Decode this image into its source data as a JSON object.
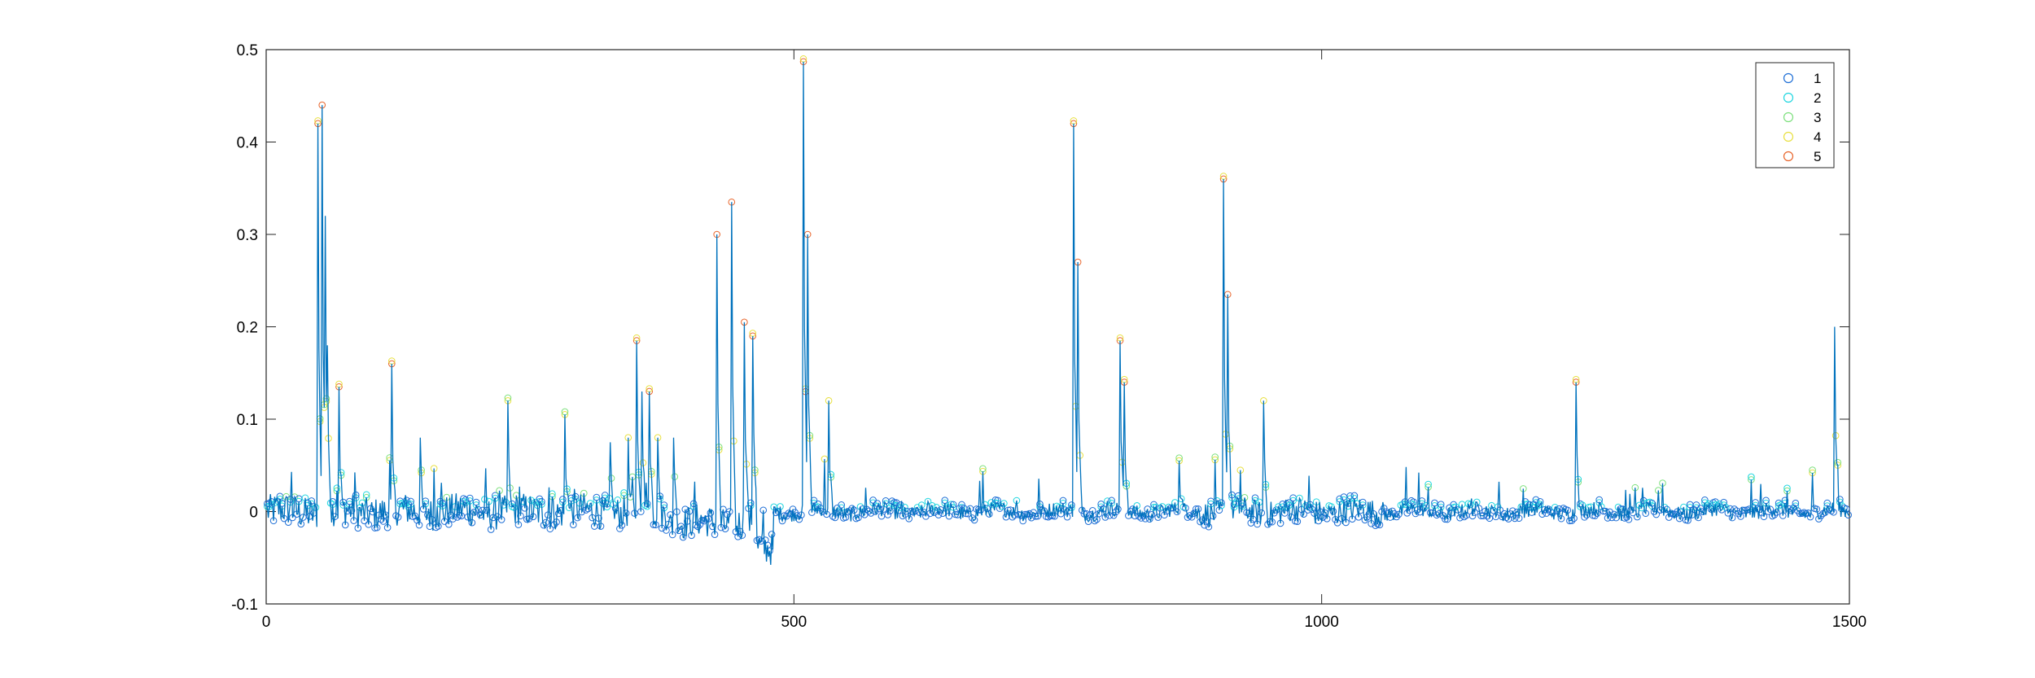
{
  "chart_data": {
    "type": "scatter",
    "title": "",
    "xlabel": "",
    "ylabel": "",
    "xlim": [
      0,
      1500
    ],
    "ylim": [
      -0.1,
      0.5
    ],
    "xticks": [
      0,
      500,
      1000,
      1500
    ],
    "yticks": [
      -0.1,
      0,
      0.1,
      0.2,
      0.3,
      0.4,
      0.5
    ],
    "xtick_labels": [
      "0",
      "500",
      "1000",
      "1500"
    ],
    "ytick_labels": [
      "-0.1",
      "0",
      "0.1",
      "0.2",
      "0.3",
      "0.4",
      "0.5"
    ],
    "grid": false,
    "legend_position": "top-right",
    "line_color": "#0072BD",
    "n_points": 1500,
    "series": [
      {
        "name": "1",
        "color": "#1f6fd6"
      },
      {
        "name": "2",
        "color": "#1fd6e0"
      },
      {
        "name": "3",
        "color": "#7de07d"
      },
      {
        "name": "4",
        "color": "#e8e040"
      },
      {
        "name": "5",
        "color": "#e8642a"
      }
    ],
    "spikes": [
      [
        48,
        0.42
      ],
      [
        52,
        0.44
      ],
      [
        55,
        0.32
      ],
      [
        57,
        0.18
      ],
      [
        68,
        0.135
      ],
      [
        118,
        0.16
      ],
      [
        145,
        0.08
      ],
      [
        228,
        0.12
      ],
      [
        282,
        0.105
      ],
      [
        325,
        0.075
      ],
      [
        342,
        0.08
      ],
      [
        350,
        0.185
      ],
      [
        355,
        0.13
      ],
      [
        362,
        0.13
      ],
      [
        370,
        0.08
      ],
      [
        385,
        0.08
      ],
      [
        426,
        0.3
      ],
      [
        440,
        0.335
      ],
      [
        452,
        0.205
      ],
      [
        460,
        0.19
      ],
      [
        508,
        0.487
      ],
      [
        512,
        0.3
      ],
      [
        532,
        0.12
      ],
      [
        764,
        0.42
      ],
      [
        768,
        0.27
      ],
      [
        808,
        0.185
      ],
      [
        812,
        0.14
      ],
      [
        864,
        0.055
      ],
      [
        906,
        0.36
      ],
      [
        910,
        0.235
      ],
      [
        944,
        0.12
      ],
      [
        1240,
        0.14
      ],
      [
        1485,
        0.2
      ]
    ]
  }
}
